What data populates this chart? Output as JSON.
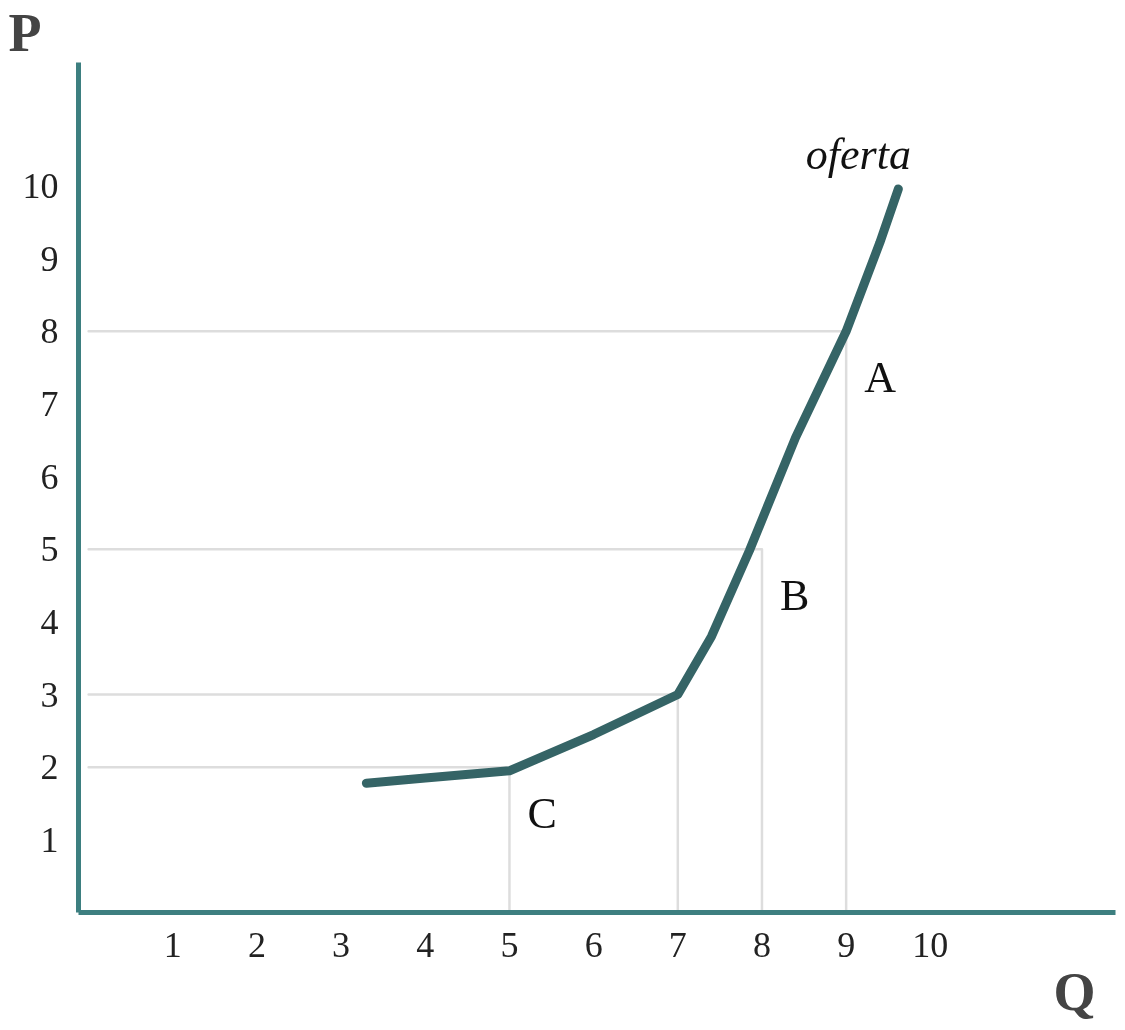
{
  "chart_data": {
    "type": "line",
    "xlabel": "Q",
    "ylabel": "P",
    "xlim": [
      -0.12,
      12.2
    ],
    "ylim": [
      0,
      11.7
    ],
    "xticks": [
      1,
      2,
      3,
      4,
      5,
      6,
      7,
      8,
      9,
      10
    ],
    "yticks": [
      1,
      2,
      3,
      4,
      5,
      6,
      7,
      8,
      9,
      10
    ],
    "grid": false,
    "marker": "none",
    "line_style": "solid",
    "series": [
      {
        "name": "oferta",
        "color": "#356466",
        "x": [
          3.3,
          4,
          5,
          6,
          7,
          7.4,
          7.85,
          8.4,
          9,
          9.4,
          9.62
        ],
        "values": [
          1.78,
          1.85,
          1.95,
          2.45,
          3,
          3.8,
          4.98,
          6.54,
          8,
          9.22,
          9.96
        ]
      },
      {
        "color": "#dddddd",
        "x": [
          0,
          9,
          9
        ],
        "values": [
          8,
          8,
          0
        ]
      },
      {
        "color": "#dddddd",
        "x": [
          0,
          8,
          8
        ],
        "values": [
          5,
          5,
          0
        ]
      },
      {
        "color": "#dddddd",
        "x": [
          0,
          7,
          7
        ],
        "values": [
          3,
          3,
          0
        ]
      },
      {
        "color": "#dddddd",
        "x": [
          0,
          5,
          5
        ],
        "values": [
          2,
          2,
          0
        ]
      }
    ],
    "annotations": [
      {
        "text": "A",
        "x": 9,
        "y": 8
      },
      {
        "text": "B",
        "x": 8,
        "y": 5
      },
      {
        "text": "C",
        "x": 5,
        "y": 2
      }
    ]
  }
}
